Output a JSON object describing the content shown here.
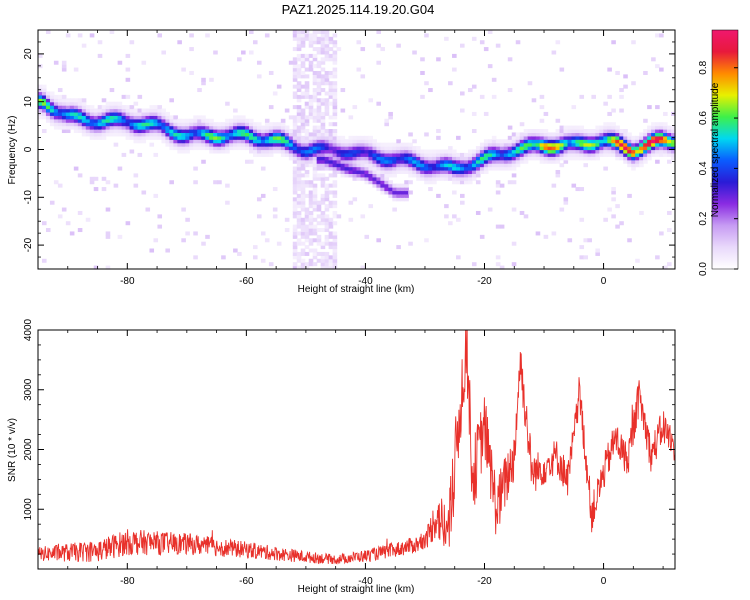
{
  "title": "PAZ1.2025.114.19.20.G04",
  "colors": {
    "background": "#ffffff",
    "axis": "#000000",
    "snr_line": "#e8302a",
    "colormap": [
      "#ffffff",
      "#e9d9fb",
      "#c79cf3",
      "#8a2be2",
      "#2a1bd6",
      "#0a5cff",
      "#00d8f0",
      "#3ef04a",
      "#e8f000",
      "#ff8a00",
      "#e8193c",
      "#f0186e"
    ]
  },
  "chart_data": [
    {
      "type": "heatmap",
      "title": "PAZ1.2025.114.19.20.G04",
      "xlabel": "Height of straight line (km)",
      "ylabel": "Frequency (Hz)",
      "xlim": [
        -95,
        12
      ],
      "ylim": [
        -25,
        25
      ],
      "xticks": [
        -80,
        -60,
        -40,
        -20,
        0
      ],
      "xtick_labels": [
        "-80",
        "-60",
        "-40",
        "-20",
        "0"
      ],
      "yticks": [
        -20,
        -10,
        0,
        10,
        20
      ],
      "ytick_labels": [
        "-20",
        "-10",
        "0",
        "10",
        "20"
      ],
      "colorbar": {
        "label": "Normalized spectral amplitude",
        "range": [
          0.0,
          0.95
        ],
        "ticks": [
          0.0,
          0.2,
          0.4,
          0.6,
          0.8
        ],
        "tick_labels": [
          "0.0",
          "0.2",
          "0.4",
          "0.6",
          "0.8"
        ]
      },
      "ridge": {
        "description_points": [
          {
            "x": -94,
            "y": 10,
            "v": 0.55
          },
          {
            "x": -90,
            "y": 7,
            "v": 0.45
          },
          {
            "x": -85,
            "y": 6,
            "v": 0.5
          },
          {
            "x": -80,
            "y": 6,
            "v": 0.45
          },
          {
            "x": -75,
            "y": 5,
            "v": 0.5
          },
          {
            "x": -70,
            "y": 3,
            "v": 0.45
          },
          {
            "x": -65,
            "y": 3,
            "v": 0.55
          },
          {
            "x": -60,
            "y": 3,
            "v": 0.5
          },
          {
            "x": -55,
            "y": 2,
            "v": 0.55
          },
          {
            "x": -50,
            "y": 0,
            "v": 0.4
          },
          {
            "x": -45,
            "y": 0,
            "v": 0.3
          },
          {
            "x": -40,
            "y": -1,
            "v": 0.35
          },
          {
            "x": -35,
            "y": -2,
            "v": 0.4
          },
          {
            "x": -30,
            "y": -3,
            "v": 0.4
          },
          {
            "x": -25,
            "y": -4,
            "v": 0.45
          },
          {
            "x": -20,
            "y": -2,
            "v": 0.5
          },
          {
            "x": -15,
            "y": 0,
            "v": 0.45
          },
          {
            "x": -10,
            "y": 1,
            "v": 0.75
          },
          {
            "x": -5,
            "y": 1,
            "v": 0.55
          },
          {
            "x": 0,
            "y": 2,
            "v": 0.6
          },
          {
            "x": 5,
            "y": 0,
            "v": 0.9
          },
          {
            "x": 10,
            "y": 2,
            "v": 0.8
          }
        ],
        "secondary_branch": [
          {
            "x": -47,
            "y": -2,
            "v": 0.3
          },
          {
            "x": -43,
            "y": -4,
            "v": 0.35
          },
          {
            "x": -40,
            "y": -5,
            "v": 0.35
          },
          {
            "x": -35,
            "y": -9,
            "v": 0.3
          }
        ]
      }
    },
    {
      "type": "line",
      "xlabel": "Height of straight line (km)",
      "ylabel": "SNR (10 * v/v)",
      "xlim": [
        -95,
        12
      ],
      "ylim": [
        0,
        4000
      ],
      "xticks": [
        -80,
        -60,
        -40,
        -20,
        0
      ],
      "xtick_labels": [
        "-80",
        "-60",
        "-40",
        "-20",
        "0"
      ],
      "yticks": [
        1000,
        2000,
        3000,
        4000
      ],
      "ytick_labels": [
        "1000",
        "2000",
        "3000",
        "4000"
      ],
      "envelope": {
        "x": [
          -95,
          -85,
          -80,
          -70,
          -60,
          -50,
          -45,
          -40,
          -35,
          -30,
          -28,
          -26,
          -24,
          -23,
          -22,
          -20,
          -18,
          -15,
          -14,
          -12,
          -10,
          -8,
          -6,
          -4,
          -2,
          0,
          2,
          4,
          6,
          8,
          10,
          12
        ],
        "y": [
          250,
          300,
          450,
          420,
          320,
          200,
          160,
          220,
          320,
          450,
          900,
          600,
          2800,
          3800,
          1500,
          2400,
          1000,
          1900,
          3500,
          1600,
          1700,
          1900,
          1500,
          2900,
          900,
          1600,
          2200,
          1800,
          2900,
          1900,
          2400,
          2000
        ]
      },
      "noise_amplitude": [
        {
          "x": -95,
          "a": 120
        },
        {
          "x": -80,
          "a": 220
        },
        {
          "x": -55,
          "a": 120
        },
        {
          "x": -45,
          "a": 80
        },
        {
          "x": -30,
          "a": 150
        },
        {
          "x": -25,
          "a": 700
        },
        {
          "x": -10,
          "a": 300
        },
        {
          "x": 12,
          "a": 300
        }
      ]
    }
  ]
}
